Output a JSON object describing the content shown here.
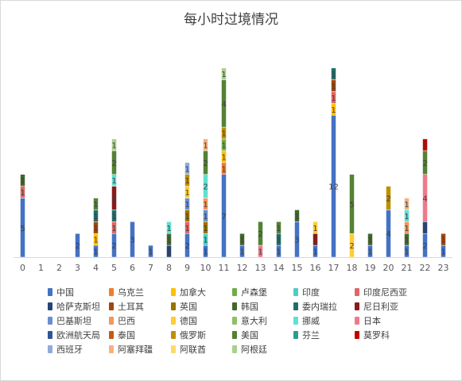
{
  "chart_data": {
    "type": "bar",
    "stacked": true,
    "title": "每小时过境情况",
    "xlabel": "",
    "ylabel": "",
    "grid": false,
    "legend_position": "bottom",
    "categories": [
      "0",
      "1",
      "2",
      "3",
      "4",
      "5",
      "6",
      "7",
      "8",
      "9",
      "10",
      "11",
      "12",
      "13",
      "14",
      "15",
      "16",
      "17",
      "18",
      "19",
      "20",
      "21",
      "22",
      "23"
    ],
    "series": [
      {
        "name": "中国",
        "color": "#4472c4",
        "values": [
          5,
          0,
          0,
          2,
          1,
          2,
          3,
          1,
          0,
          2,
          1,
          7,
          1,
          0,
          1,
          3,
          1,
          12,
          0,
          1,
          4,
          1,
          2,
          1
        ]
      },
      {
        "name": "乌克兰",
        "color": "#ed7d31",
        "values": [
          0,
          0,
          0,
          0,
          0,
          0,
          0,
          0,
          0,
          0,
          0,
          1,
          0,
          0,
          0,
          0,
          0,
          0,
          0,
          0,
          0,
          0,
          0,
          0
        ]
      },
      {
        "name": "加拿大",
        "color": "#ffc000",
        "values": [
          0,
          0,
          0,
          0,
          1,
          0,
          0,
          0,
          0,
          0,
          0,
          1,
          0,
          0,
          0,
          0,
          0,
          1,
          0,
          0,
          0,
          0,
          0,
          0
        ]
      },
      {
        "name": "卢森堡",
        "color": "#70ad47",
        "values": [
          0,
          0,
          0,
          0,
          0,
          0,
          0,
          0,
          0,
          0,
          0,
          1,
          0,
          0,
          0,
          0,
          0,
          0,
          0,
          0,
          0,
          0,
          0,
          0
        ]
      },
      {
        "name": "印度",
        "color": "#4ecdc4",
        "values": [
          0,
          0,
          0,
          0,
          0,
          0,
          0,
          0,
          0,
          0,
          1,
          0,
          0,
          0,
          0,
          0,
          0,
          0,
          0,
          0,
          0,
          0,
          0,
          0
        ]
      },
      {
        "name": "印度尼西亚",
        "color": "#e06666",
        "values": [
          1,
          0,
          0,
          0,
          0,
          1,
          0,
          0,
          0,
          1,
          0,
          0,
          0,
          0,
          0,
          0,
          0,
          1,
          0,
          0,
          0,
          0,
          0,
          0
        ]
      },
      {
        "name": "哈萨克斯坦",
        "color": "#264478",
        "values": [
          0,
          0,
          0,
          0,
          0,
          0,
          0,
          0,
          1,
          0,
          0,
          0,
          0,
          0,
          0,
          0,
          0,
          0,
          0,
          0,
          0,
          0,
          1,
          0
        ]
      },
      {
        "name": "土耳其",
        "color": "#9e480e",
        "values": [
          0,
          0,
          0,
          0,
          1,
          0,
          0,
          0,
          0,
          0,
          0,
          0,
          0,
          0,
          0,
          0,
          0,
          1,
          0,
          0,
          0,
          0,
          0,
          1
        ]
      },
      {
        "name": "英国",
        "color": "#997300",
        "values": [
          0,
          0,
          0,
          0,
          0,
          0,
          0,
          0,
          0,
          1,
          1,
          0,
          0,
          0,
          0,
          0,
          0,
          0,
          0,
          0,
          0,
          0,
          0,
          0
        ]
      },
      {
        "name": "韩国",
        "color": "#43682b",
        "values": [
          1,
          0,
          0,
          0,
          0,
          0,
          0,
          0,
          1,
          0,
          0,
          0,
          1,
          0,
          0,
          1,
          0,
          0,
          0,
          1,
          0,
          1,
          0,
          0
        ]
      },
      {
        "name": "委内瑞拉",
        "color": "#1f6e6a",
        "values": [
          0,
          0,
          0,
          0,
          1,
          1,
          0,
          0,
          0,
          0,
          0,
          0,
          0,
          0,
          1,
          0,
          0,
          1,
          0,
          0,
          0,
          0,
          0,
          0
        ]
      },
      {
        "name": "尼日利亚",
        "color": "#8b1a1a",
        "values": [
          0,
          0,
          0,
          0,
          0,
          2,
          0,
          0,
          0,
          0,
          0,
          0,
          0,
          0,
          0,
          0,
          1,
          0,
          0,
          0,
          0,
          0,
          0,
          0
        ]
      },
      {
        "name": "巴基斯坦",
        "color": "#698ed0",
        "values": [
          0,
          0,
          0,
          0,
          0,
          0,
          0,
          0,
          0,
          1,
          1,
          0,
          0,
          0,
          0,
          0,
          0,
          0,
          0,
          0,
          0,
          0,
          0,
          0
        ]
      },
      {
        "name": "巴西",
        "color": "#f1975a",
        "values": [
          0,
          0,
          0,
          0,
          0,
          0,
          0,
          0,
          0,
          0,
          1,
          0,
          0,
          0,
          0,
          0,
          0,
          0,
          0,
          0,
          0,
          1,
          0,
          0
        ]
      },
      {
        "name": "德国",
        "color": "#ffcd33",
        "values": [
          0,
          0,
          0,
          0,
          0,
          0,
          0,
          0,
          0,
          1,
          0,
          0,
          0,
          0,
          0,
          0,
          1,
          0,
          2,
          0,
          0,
          0,
          0,
          0
        ]
      },
      {
        "name": "意大利",
        "color": "#8cc168",
        "values": [
          0,
          0,
          0,
          0,
          0,
          0,
          0,
          0,
          0,
          0,
          0,
          0,
          0,
          0,
          0,
          0,
          0,
          0,
          0,
          0,
          0,
          0,
          0,
          0
        ]
      },
      {
        "name": "挪威",
        "color": "#5fe0d2",
        "values": [
          0,
          0,
          0,
          0,
          0,
          1,
          0,
          0,
          1,
          0,
          2,
          0,
          0,
          0,
          0,
          0,
          0,
          0,
          0,
          0,
          0,
          1,
          0,
          0
        ]
      },
      {
        "name": "日本",
        "color": "#ec7b8a",
        "values": [
          0,
          0,
          0,
          0,
          0,
          0,
          0,
          0,
          0,
          0,
          0,
          0,
          0,
          1,
          0,
          0,
          0,
          0,
          0,
          0,
          0,
          0,
          4,
          0
        ]
      },
      {
        "name": "欧洲航天局",
        "color": "#2f5597",
        "values": [
          0,
          0,
          0,
          0,
          0,
          0,
          0,
          0,
          0,
          0,
          0,
          0,
          0,
          0,
          0,
          0,
          0,
          0,
          0,
          0,
          0,
          0,
          0,
          0
        ]
      },
      {
        "name": "泰国",
        "color": "#c55a11",
        "values": [
          0,
          0,
          0,
          0,
          0,
          0,
          0,
          0,
          0,
          0,
          0,
          0,
          0,
          0,
          0,
          0,
          0,
          0,
          0,
          0,
          0,
          0,
          0,
          0
        ]
      },
      {
        "name": "俄罗斯",
        "color": "#bf9000",
        "values": [
          0,
          0,
          0,
          0,
          0,
          0,
          0,
          0,
          0,
          1,
          0,
          1,
          0,
          0,
          0,
          0,
          0,
          0,
          0,
          0,
          2,
          0,
          0,
          0
        ]
      },
      {
        "name": "美国",
        "color": "#548235",
        "values": [
          0,
          0,
          0,
          0,
          1,
          2,
          0,
          0,
          0,
          0,
          2,
          4,
          0,
          2,
          1,
          0,
          0,
          0,
          5,
          0,
          0,
          0,
          2,
          0
        ]
      },
      {
        "name": "芬兰",
        "color": "#2a9d8f",
        "values": [
          0,
          0,
          0,
          0,
          0,
          0,
          0,
          0,
          0,
          0,
          0,
          0,
          0,
          0,
          0,
          0,
          0,
          0,
          0,
          0,
          0,
          0,
          0,
          0
        ]
      },
      {
        "name": "莫罗科",
        "color": "#c00000",
        "values": [
          0,
          0,
          0,
          0,
          0,
          0,
          0,
          0,
          0,
          0,
          0,
          0,
          0,
          0,
          0,
          0,
          0,
          0,
          0,
          0,
          0,
          0,
          1,
          0
        ]
      },
      {
        "name": "西班牙",
        "color": "#8faadc",
        "values": [
          0,
          0,
          0,
          0,
          0,
          0,
          0,
          0,
          0,
          1,
          0,
          0,
          0,
          0,
          0,
          0,
          0,
          0,
          0,
          0,
          0,
          0,
          0,
          0
        ]
      },
      {
        "name": "阿塞拜疆",
        "color": "#f4b183",
        "values": [
          0,
          0,
          0,
          0,
          0,
          0,
          0,
          0,
          0,
          0,
          1,
          0,
          0,
          0,
          0,
          0,
          0,
          0,
          0,
          0,
          0,
          1,
          0,
          0
        ]
      },
      {
        "name": "阿联酋",
        "color": "#ffd966",
        "values": [
          0,
          0,
          0,
          0,
          0,
          0,
          0,
          0,
          0,
          0,
          0,
          0,
          0,
          0,
          0,
          0,
          0,
          0,
          0,
          0,
          0,
          0,
          0,
          0
        ]
      },
      {
        "name": "阿根廷",
        "color": "#a9d18e",
        "values": [
          0,
          0,
          0,
          0,
          0,
          1,
          0,
          0,
          0,
          0,
          0,
          1,
          0,
          0,
          0,
          0,
          0,
          0,
          0,
          0,
          0,
          0,
          0,
          0
        ]
      }
    ]
  }
}
